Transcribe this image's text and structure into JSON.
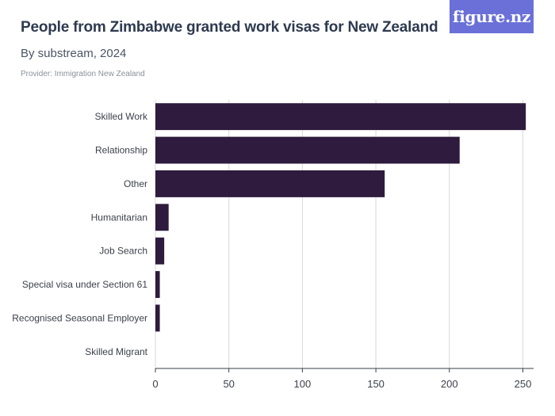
{
  "header": {
    "title": "People from Zimbabwe granted work visas for New Zealand",
    "subtitle": "By substream, 2024",
    "provider": "Provider: Immigration New Zealand",
    "brand": "figure.nz"
  },
  "colors": {
    "bar": "#2e1b3d",
    "grid": "#d9d9d9",
    "axis": "#3a3f4a",
    "brand_bg": "#6a70d8"
  },
  "chart_data": {
    "type": "bar",
    "orientation": "horizontal",
    "categories": [
      "Skilled Work",
      "Relationship",
      "Other",
      "Humanitarian",
      "Job Search",
      "Special visa under Section 61",
      "Recognised Seasonal Employer",
      "Skilled Migrant"
    ],
    "values": [
      252,
      207,
      156,
      9,
      6,
      3,
      3,
      0
    ],
    "xlim": [
      0,
      260
    ],
    "xticks": [
      0,
      50,
      100,
      150,
      200,
      250
    ],
    "grid": true,
    "legend": "none"
  }
}
